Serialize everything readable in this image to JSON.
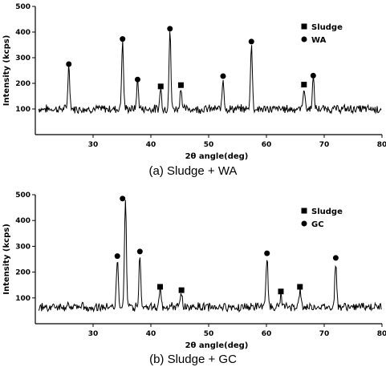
{
  "chart_data": [
    {
      "type": "line",
      "caption": "(a) Sludge + WA",
      "xlabel": "2θ angle(deg)",
      "ylabel": "Intensity (kcps)",
      "xlim": [
        20,
        80
      ],
      "ylim": [
        0,
        500
      ],
      "xticks": [
        30,
        40,
        50,
        60,
        70,
        80
      ],
      "yticks": [
        100,
        200,
        300,
        400,
        500
      ],
      "baseline": 100,
      "peaks": [
        {
          "x": 25.8,
          "y": 270
        },
        {
          "x": 35.1,
          "y": 365
        },
        {
          "x": 37.7,
          "y": 210
        },
        {
          "x": 41.7,
          "y": 180
        },
        {
          "x": 43.3,
          "y": 405
        },
        {
          "x": 45.2,
          "y": 185
        },
        {
          "x": 52.5,
          "y": 220
        },
        {
          "x": 57.4,
          "y": 355
        },
        {
          "x": 66.5,
          "y": 185
        },
        {
          "x": 68.1,
          "y": 222
        }
      ],
      "series": [
        {
          "name": "Sludge",
          "marker": "square",
          "points": [
            {
              "x": 41.7,
              "y": 188
            },
            {
              "x": 45.2,
              "y": 193
            },
            {
              "x": 66.5,
              "y": 195
            }
          ]
        },
        {
          "name": "WA",
          "marker": "circle",
          "points": [
            {
              "x": 25.8,
              "y": 275
            },
            {
              "x": 35.1,
              "y": 373
            },
            {
              "x": 37.7,
              "y": 215
            },
            {
              "x": 43.3,
              "y": 413
            },
            {
              "x": 52.5,
              "y": 228
            },
            {
              "x": 57.4,
              "y": 363
            },
            {
              "x": 68.1,
              "y": 230
            }
          ]
        }
      ],
      "legend_position": "top-right"
    },
    {
      "type": "line",
      "caption": "(b) Sludge + GC",
      "xlabel": "2θ angle(deg)",
      "ylabel": "Intensity (kcps)",
      "xlim": [
        20,
        80
      ],
      "ylim": [
        0,
        500
      ],
      "xticks": [
        30,
        40,
        50,
        60,
        70,
        80
      ],
      "yticks": [
        100,
        200,
        300,
        400,
        500
      ],
      "baseline": 65,
      "peaks": [
        {
          "x": 34.2,
          "y": 250
        },
        {
          "x": 35.6,
          "y": 490
        },
        {
          "x": 38.1,
          "y": 270
        },
        {
          "x": 41.6,
          "y": 135
        },
        {
          "x": 45.3,
          "y": 120
        },
        {
          "x": 60.1,
          "y": 265
        },
        {
          "x": 62.5,
          "y": 105
        },
        {
          "x": 65.8,
          "y": 130
        },
        {
          "x": 72.0,
          "y": 245
        }
      ],
      "series": [
        {
          "name": "Sludge",
          "marker": "square",
          "points": [
            {
              "x": 41.6,
              "y": 143
            },
            {
              "x": 45.3,
              "y": 130
            },
            {
              "x": 62.5,
              "y": 125
            },
            {
              "x": 65.8,
              "y": 143
            }
          ]
        },
        {
          "name": "GC",
          "marker": "circle",
          "points": [
            {
              "x": 34.2,
              "y": 262
            },
            {
              "x": 35.1,
              "y": 485
            },
            {
              "x": 38.1,
              "y": 280
            },
            {
              "x": 60.1,
              "y": 273
            },
            {
              "x": 72.0,
              "y": 255
            }
          ]
        }
      ],
      "legend_position": "top-right"
    }
  ]
}
